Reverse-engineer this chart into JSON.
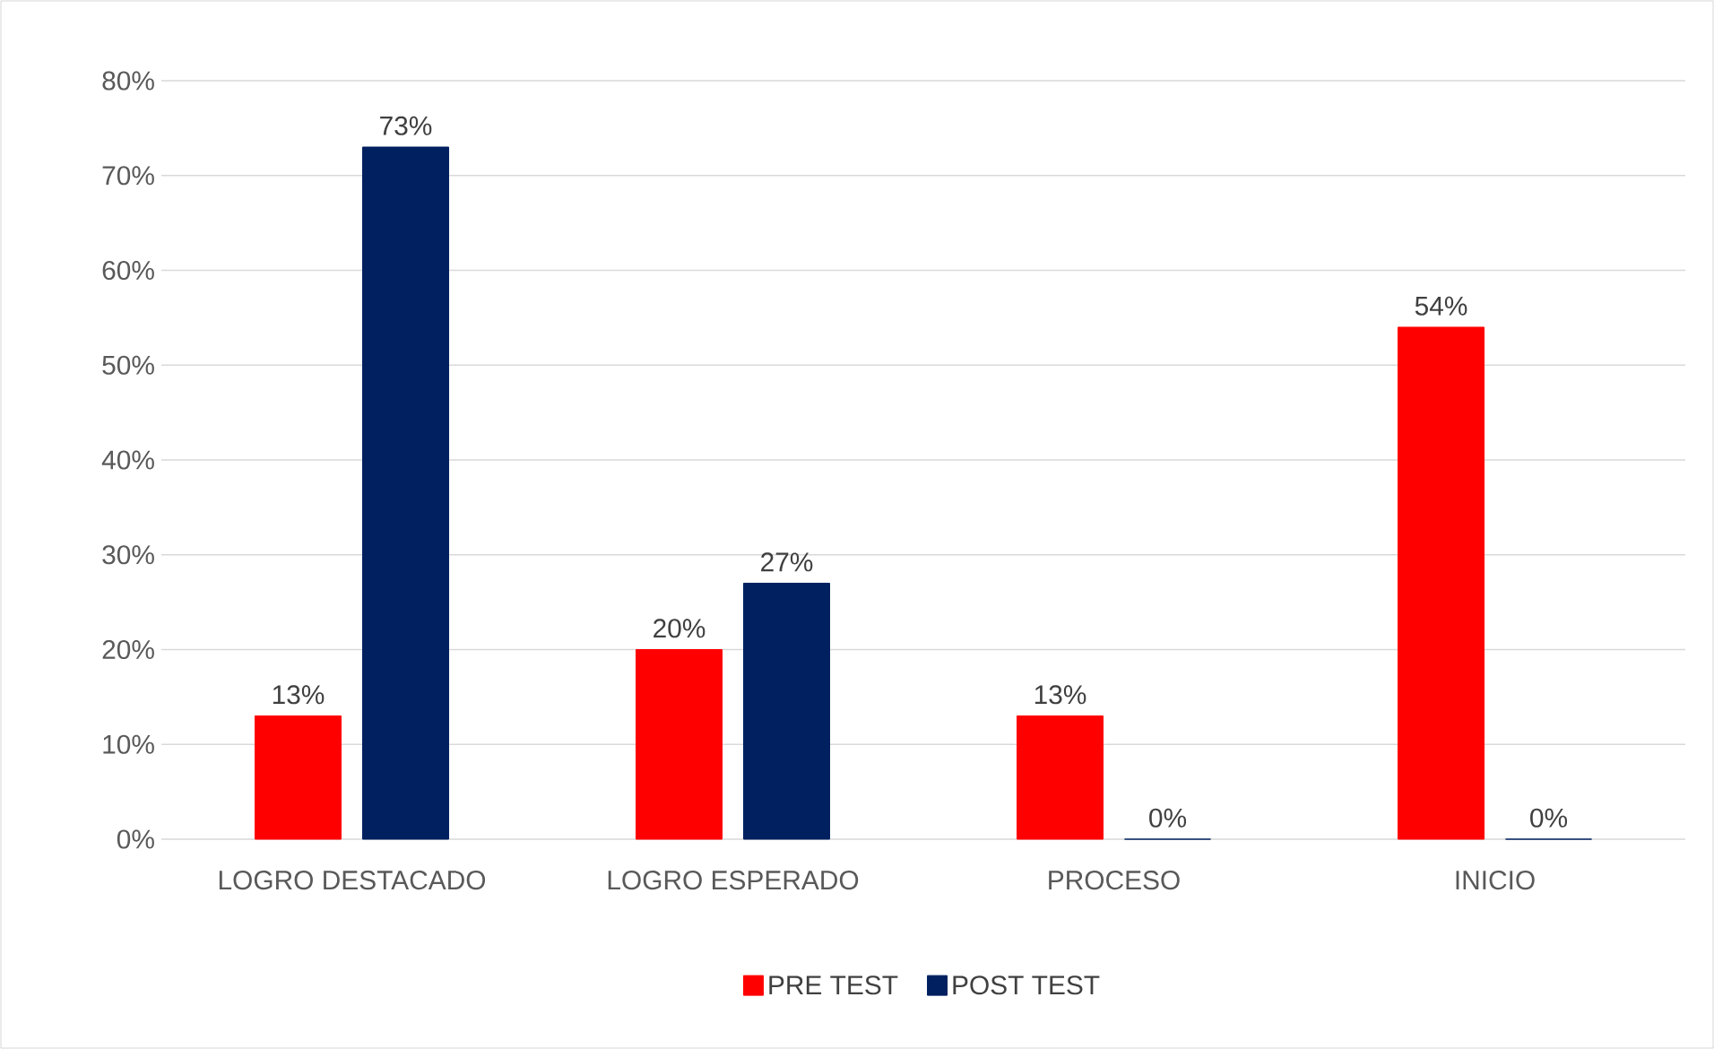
{
  "chart_data": {
    "type": "bar",
    "categories": [
      "LOGRO DESTACADO",
      "LOGRO ESPERADO",
      "PROCESO",
      "INICIO"
    ],
    "series": [
      {
        "name": "PRE TEST",
        "color": "#ff0000",
        "values": [
          13,
          20,
          13,
          54
        ],
        "value_labels": [
          "13%",
          "20%",
          "13%",
          "54%"
        ]
      },
      {
        "name": "POST TEST",
        "color": "#002060",
        "values": [
          73,
          27,
          0,
          0
        ],
        "value_labels": [
          "73%",
          "27%",
          "0%",
          "0%"
        ]
      }
    ],
    "ylim": [
      0,
      80
    ],
    "yticks": [
      {
        "value": 0,
        "label": "0%"
      },
      {
        "value": 10,
        "label": "10%"
      },
      {
        "value": 20,
        "label": "20%"
      },
      {
        "value": 30,
        "label": "30%"
      },
      {
        "value": 40,
        "label": "40%"
      },
      {
        "value": 50,
        "label": "50%"
      },
      {
        "value": 60,
        "label": "60%"
      },
      {
        "value": 70,
        "label": "70%"
      },
      {
        "value": 80,
        "label": "80%"
      }
    ],
    "grid": "y",
    "legend": "bottom"
  }
}
